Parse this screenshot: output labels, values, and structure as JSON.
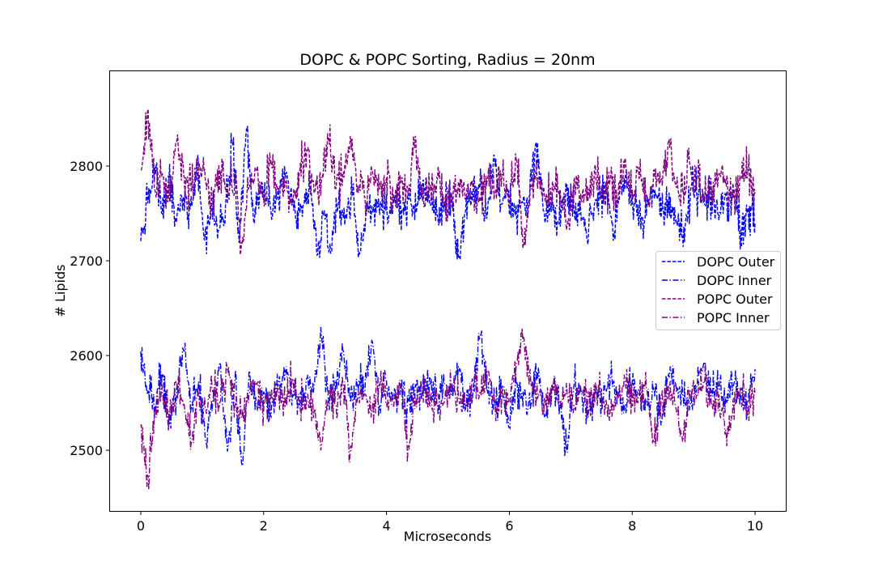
{
  "chart_data": {
    "type": "line",
    "title": "DOPC & POPC Sorting, Radius = 20nm",
    "xlabel": "Microseconds",
    "ylabel": "# Lipids",
    "xlim": [
      -0.5,
      10.5
    ],
    "ylim": [
      2436,
      2900
    ],
    "xticks": [
      0,
      2,
      4,
      6,
      8,
      10
    ],
    "xtick_labels": [
      "0",
      "2",
      "4",
      "6",
      "8",
      "10"
    ],
    "yticks": [
      2500,
      2600,
      2700,
      2800
    ],
    "ytick_labels": [
      "2500",
      "2600",
      "2700",
      "2800"
    ],
    "grid": false,
    "legend_position": "center-right",
    "x_range": [
      0,
      10
    ],
    "n_samples": 1000,
    "series": [
      {
        "name": "DOPC Outer",
        "color": "#0000ff",
        "linestyle": "dashed",
        "mean": 2764,
        "noise_amplitude": 22,
        "values": [
          2713,
          2762,
          2805,
          2745,
          2790,
          2735,
          2768,
          2752,
          2815,
          2712,
          2758,
          2725,
          2760,
          2838,
          2720,
          2857,
          2735,
          2778,
          2765,
          2748,
          2792,
          2770,
          2740,
          2757,
          2780,
          2693,
          2752,
          2698,
          2760,
          2745,
          2772,
          2695,
          2750,
          2758,
          2762,
          2735,
          2770,
          2752,
          2766,
          2748,
          2790,
          2758,
          2745,
          2760,
          2770,
          2690,
          2752,
          2765,
          2780,
          2740,
          2822,
          2758,
          2772,
          2745,
          2762,
          2766,
          2838,
          2750,
          2760,
          2735,
          2770,
          2752,
          2762,
          2725,
          2748,
          2768,
          2775,
          2720,
          2790,
          2785,
          2760,
          2742,
          2765,
          2770,
          2750,
          2768,
          2733,
          2712,
          2785,
          2770,
          2757,
          2763,
          2748,
          2767,
          2770,
          2728,
          2755,
          2735
        ]
      },
      {
        "name": "DOPC Inner",
        "color": "#0000ff",
        "linestyle": "dashdot",
        "mean": 2561,
        "noise_amplitude": 20,
        "values": [
          2612,
          2560,
          2542,
          2585,
          2520,
          2568,
          2615,
          2540,
          2575,
          2498,
          2552,
          2600,
          2486,
          2575,
          2467,
          2590,
          2545,
          2562,
          2530,
          2570,
          2588,
          2558,
          2545,
          2580,
          2570,
          2632,
          2552,
          2575,
          2615,
          2548,
          2570,
          2560,
          2628,
          2542,
          2575,
          2558,
          2566,
          2550,
          2570,
          2560,
          2580,
          2545,
          2572,
          2558,
          2595,
          2540,
          2568,
          2635,
          2560,
          2548,
          2570,
          2518,
          2575,
          2560,
          2545,
          2592,
          2530,
          2566,
          2545,
          2486,
          2575,
          2560,
          2538,
          2566,
          2552,
          2578,
          2560,
          2545,
          2572,
          2558,
          2550,
          2566,
          2520,
          2585,
          2572,
          2558,
          2545,
          2570,
          2600,
          2562,
          2566,
          2555,
          2570,
          2560,
          2548,
          2590
        ]
      },
      {
        "name": "POPC Outer",
        "color": "#800080",
        "linestyle": "dashed",
        "mean": 2776,
        "noise_amplitude": 22,
        "values": [
          2800,
          2877,
          2770,
          2795,
          2760,
          2838,
          2790,
          2772,
          2810,
          2785,
          2755,
          2800,
          2770,
          2790,
          2705,
          2780,
          2800,
          2765,
          2810,
          2772,
          2785,
          2758,
          2800,
          2825,
          2770,
          2785,
          2840,
          2775,
          2795,
          2842,
          2780,
          2765,
          2800,
          2775,
          2790,
          2760,
          2785,
          2770,
          2842,
          2760,
          2775,
          2790,
          2758,
          2770,
          2785,
          2765,
          2775,
          2760,
          2790,
          2770,
          2795,
          2760,
          2815,
          2703,
          2780,
          2790,
          2760,
          2785,
          2775,
          2730,
          2790,
          2760,
          2775,
          2785,
          2765,
          2790,
          2760,
          2815,
          2775,
          2790,
          2768,
          2800,
          2785,
          2835,
          2780,
          2772,
          2805,
          2790,
          2760,
          2775,
          2795,
          2780,
          2765,
          2790,
          2800,
          2770
        ]
      },
      {
        "name": "POPC Inner",
        "color": "#800080",
        "linestyle": "dashdot",
        "mean": 2554,
        "noise_amplitude": 20,
        "values": [
          2520,
          2456,
          2545,
          2560,
          2530,
          2575,
          2548,
          2498,
          2555,
          2540,
          2565,
          2550,
          2590,
          2545,
          2530,
          2560,
          2575,
          2540,
          2555,
          2568,
          2545,
          2580,
          2545,
          2560,
          2540,
          2495,
          2565,
          2545,
          2575,
          2492,
          2555,
          2560,
          2540,
          2572,
          2550,
          2545,
          2565,
          2492,
          2555,
          2568,
          2545,
          2560,
          2550,
          2570,
          2555,
          2545,
          2580,
          2560,
          2590,
          2545,
          2565,
          2555,
          2600,
          2632,
          2570,
          2560,
          2545,
          2575,
          2550,
          2560,
          2545,
          2565,
          2555,
          2570,
          2550,
          2540,
          2560,
          2575,
          2545,
          2560,
          2568,
          2498,
          2555,
          2570,
          2545,
          2500,
          2565,
          2560,
          2575,
          2545,
          2560,
          2512,
          2555,
          2568,
          2545,
          2560
        ]
      }
    ]
  }
}
